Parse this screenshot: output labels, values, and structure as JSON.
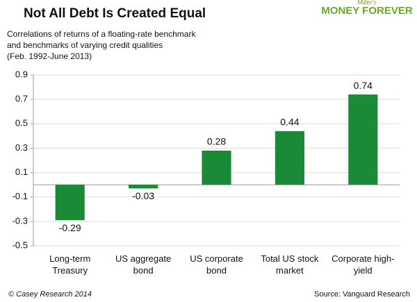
{
  "chart_data": {
    "type": "bar",
    "title": "Not All Debt Is Created Equal",
    "subtitle": [
      "Correlations of returns of a floating-rate benchmark",
      "and benchmarks of varying credit qualities",
      "(Feb. 1992-June 2013)"
    ],
    "logo_small": "Miller's",
    "logo": "MONEY FOREVER",
    "categories": [
      "Long-term Treasury",
      "US aggregate bond",
      "US corporate bond",
      "Total US stock market",
      "Corporate high-yield"
    ],
    "values": [
      -0.29,
      -0.03,
      0.28,
      0.44,
      0.74
    ],
    "color": "#1a8a36",
    "ylim": [
      -0.5,
      0.9
    ],
    "yticks": [
      -0.5,
      -0.3,
      -0.1,
      0.1,
      0.3,
      0.5,
      0.7,
      0.9
    ],
    "grid": true,
    "footer_left": "© Casey Research 2014",
    "footer_right": "Source: Vanguard Research"
  }
}
